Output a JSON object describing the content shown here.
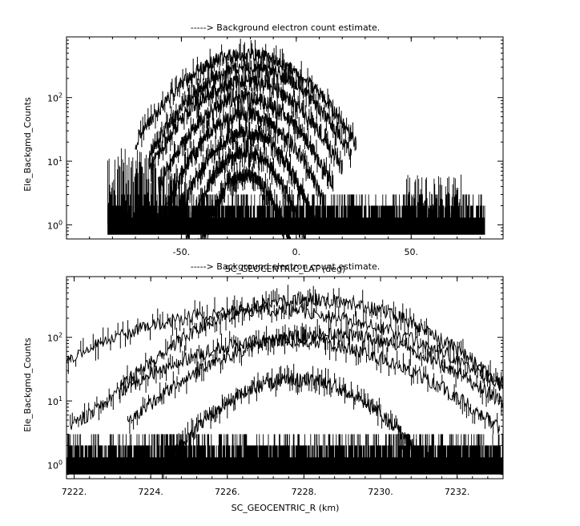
{
  "chart_data": [
    {
      "type": "line",
      "title": "-----> Background electron count estimate.",
      "xlabel": "SC_GEOCENTRIC_LAT (deg)",
      "ylabel": "Ele_Backgmd_Counts",
      "xlim": [
        -100,
        90
      ],
      "ylim": [
        0.6,
        900
      ],
      "yscale": "log",
      "xticks": [
        {
          "v": -50,
          "label": "-50."
        },
        {
          "v": 0,
          "label": "0."
        },
        {
          "v": 50,
          "label": "50."
        }
      ],
      "yticks": [
        {
          "v": 1,
          "base": "10",
          "exp": "0"
        },
        {
          "v": 10,
          "base": "10",
          "exp": "1"
        },
        {
          "v": 100,
          "base": "10",
          "exp": "2"
        }
      ],
      "noise_floor": {
        "x_range": [
          -82,
          82
        ],
        "y_range": [
          0.7,
          3
        ]
      },
      "bumps": [
        {
          "x_range": [
            -82,
            -60
          ],
          "peak": 15
        },
        {
          "x_range": [
            -60,
            -47
          ],
          "peak": 8
        },
        {
          "x_range": [
            48,
            72
          ],
          "peak": 6
        }
      ],
      "arcs": [
        {
          "center": -22,
          "half_width": 48,
          "peak": 480
        },
        {
          "center": -20,
          "half_width": 44,
          "peak": 300
        },
        {
          "center": -22,
          "half_width": 42,
          "peak": 180
        },
        {
          "center": -22,
          "half_width": 38,
          "peak": 100
        },
        {
          "center": -22,
          "half_width": 34,
          "peak": 55
        },
        {
          "center": -22,
          "half_width": 30,
          "peak": 28
        },
        {
          "center": -22,
          "half_width": 26,
          "peak": 14
        },
        {
          "center": -22,
          "half_width": 22,
          "peak": 6
        }
      ]
    },
    {
      "type": "line",
      "title": "-----> Background electron count estimate.",
      "xlabel": "SC_GEOCENTRIC_R (km)",
      "ylabel": "Ele_Backgmd_Counts",
      "xlim": [
        7221.8,
        7233.2
      ],
      "ylim": [
        0.6,
        900
      ],
      "yscale": "log",
      "xticks": [
        {
          "v": 7222,
          "label": "7222."
        },
        {
          "v": 7224,
          "label": "7224."
        },
        {
          "v": 7226,
          "label": "7226."
        },
        {
          "v": 7228,
          "label": "7228."
        },
        {
          "v": 7230,
          "label": "7230."
        },
        {
          "v": 7232,
          "label": "7232."
        }
      ],
      "yticks": [
        {
          "v": 1,
          "base": "10",
          "exp": "0"
        },
        {
          "v": 10,
          "base": "10",
          "exp": "1"
        },
        {
          "v": 100,
          "base": "10",
          "exp": "2"
        }
      ],
      "noise_floor": {
        "x_range": [
          7221.8,
          7233.2
        ],
        "y_range": [
          0.7,
          3
        ]
      },
      "bumps": [],
      "arcs": [
        {
          "center": 7228.2,
          "half_width": 5.0,
          "peak": 400
        },
        {
          "center": 7226.9,
          "half_width": 6.8,
          "peak": 270
        },
        {
          "center": 7228.6,
          "half_width": 5.2,
          "peak": 110
        },
        {
          "center": 7227.5,
          "half_width": 5.6,
          "peak": 90
        },
        {
          "center": 7227.8,
          "half_width": 3.5,
          "peak": 22
        }
      ]
    }
  ]
}
